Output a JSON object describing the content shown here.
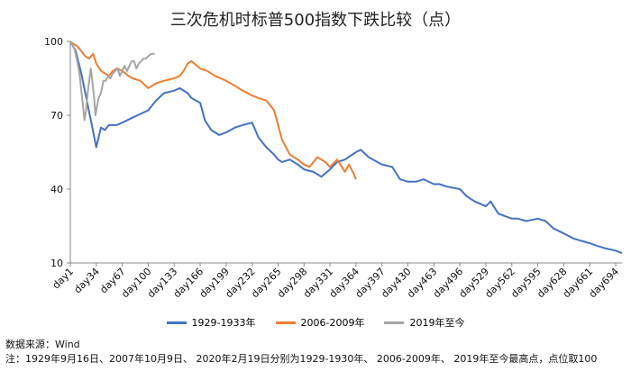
{
  "chart_data": {
    "type": "line",
    "title": "三次危机时标普500指数下跌比较（点）",
    "xlabel": "",
    "ylabel": "",
    "ylim": [
      10,
      100
    ],
    "yticks": [
      10,
      40,
      70,
      100
    ],
    "xticks": [
      "day1",
      "day34",
      "day67",
      "day100",
      "day133",
      "day166",
      "day199",
      "day232",
      "day265",
      "day298",
      "day331",
      "day364",
      "day397",
      "day430",
      "day463",
      "day496",
      "day529",
      "day562",
      "day595",
      "day628",
      "day661",
      "day694"
    ],
    "grid": false,
    "legend_position": "bottom",
    "series": [
      {
        "name": "1929-1933年",
        "color": "#4472C4",
        "x": [
          1,
          8,
          15,
          22,
          29,
          34,
          40,
          45,
          50,
          60,
          67,
          80,
          100,
          110,
          120,
          133,
          140,
          150,
          155,
          166,
          172,
          180,
          190,
          199,
          210,
          220,
          232,
          240,
          250,
          260,
          265,
          270,
          280,
          290,
          298,
          310,
          320,
          331,
          340,
          350,
          364,
          370,
          380,
          397,
          410,
          420,
          430,
          440,
          450,
          463,
          470,
          480,
          496,
          505,
          515,
          529,
          535,
          545,
          562,
          570,
          580,
          595,
          605,
          615,
          628,
          640,
          650,
          661,
          670,
          680,
          694,
          702
        ],
        "values": [
          100,
          96,
          87,
          76,
          65,
          57,
          65,
          64,
          66,
          66,
          67,
          69,
          72,
          76,
          79,
          80,
          81,
          79,
          77,
          75,
          68,
          64,
          62,
          63,
          65,
          66,
          67,
          61,
          57,
          54,
          52,
          51,
          52,
          50,
          48,
          47,
          45,
          48,
          51,
          52,
          55,
          56,
          53,
          50,
          49,
          44,
          43,
          43,
          44,
          42,
          42,
          41,
          40,
          37,
          35,
          33,
          35,
          30,
          28,
          28,
          27,
          28,
          27,
          24,
          22,
          20,
          19,
          18,
          17,
          16,
          15,
          14
        ]
      },
      {
        "name": "2006-2009年",
        "color": "#ED7D31",
        "x": [
          1,
          5,
          10,
          15,
          20,
          25,
          30,
          34,
          40,
          45,
          50,
          55,
          60,
          67,
          75,
          80,
          90,
          100,
          110,
          120,
          133,
          140,
          145,
          150,
          155,
          166,
          175,
          185,
          199,
          210,
          220,
          232,
          240,
          250,
          260,
          265,
          270,
          280,
          290,
          298,
          305,
          315,
          325,
          331,
          340,
          350,
          355,
          360,
          364
        ],
        "values": [
          100,
          99,
          98,
          96,
          94,
          93,
          95,
          91,
          88,
          87,
          86,
          88,
          89,
          88,
          86,
          85,
          84,
          81,
          83,
          84,
          85,
          86,
          88,
          91,
          92,
          89,
          88,
          86,
          84,
          82,
          80,
          78,
          77,
          76,
          72,
          66,
          60,
          54,
          52,
          50,
          49,
          53,
          51,
          49,
          52,
          47,
          50,
          47,
          44
        ]
      },
      {
        "name": "2019年至今",
        "color": "#A5A5A5",
        "x": [
          1,
          3,
          5,
          7,
          9,
          11,
          13,
          15,
          17,
          19,
          21,
          23,
          25,
          27,
          29,
          31,
          33,
          34,
          37,
          40,
          43,
          46,
          49,
          52,
          55,
          58,
          61,
          64,
          67,
          70,
          73,
          76,
          79,
          82,
          85,
          88,
          91,
          94,
          97,
          100,
          104,
          108
        ],
        "values": [
          100,
          99,
          98,
          96,
          93,
          90,
          86,
          80,
          74,
          68,
          72,
          79,
          84,
          89,
          84,
          78,
          70,
          72,
          77,
          79,
          84,
          84,
          86,
          85,
          87,
          88,
          89,
          86,
          88,
          90,
          88,
          90,
          92,
          92,
          89,
          91,
          92,
          93,
          93,
          94,
          95,
          95
        ]
      }
    ],
    "footnotes": [
      "数据来源：Wind",
      "注：1929年9月16日、2007年10月9日、 2020年2月19日分别为1929-1930年、 2006-2009年、 2019年至今最高点，点位取100"
    ]
  }
}
